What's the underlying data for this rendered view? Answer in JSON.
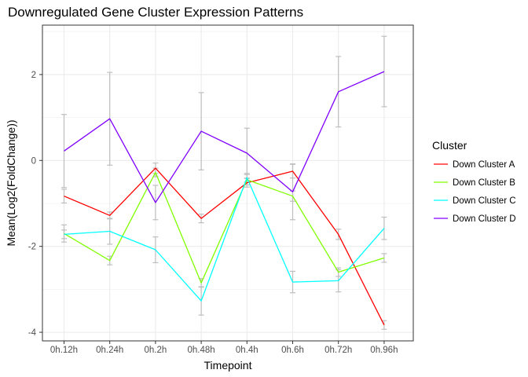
{
  "chart_data": {
    "type": "line",
    "title": "Downregulated Gene Cluster Expression Patterns",
    "xlabel": "Timepoint",
    "ylabel": "Mean(Log2(FoldChange))",
    "categories": [
      "0h.12h",
      "0h.24h",
      "0h.2h",
      "0h.48h",
      "0h.4h",
      "0h.6h",
      "0h.72h",
      "0h.96h"
    ],
    "ylim": [
      -4.2,
      3.15
    ],
    "yticks": [
      -4,
      -2,
      0,
      2
    ],
    "grid": true,
    "legend": {
      "title": "Cluster",
      "position": "right"
    },
    "error_bar_color": "#bebebe",
    "series": [
      {
        "name": "Down Cluster A",
        "color": "#ff0000",
        "values": [
          -0.83,
          -1.28,
          -0.18,
          -1.35,
          -0.52,
          -0.25,
          -1.72,
          -3.83
        ],
        "errors": [
          0.16,
          0.08,
          0.12,
          0.1,
          0.1,
          0.16,
          0.12,
          0.1
        ]
      },
      {
        "name": "Down Cluster B",
        "color": "#80ff00",
        "values": [
          -1.7,
          -2.33,
          -0.28,
          -2.85,
          -0.45,
          -0.83,
          -2.6,
          -2.27
        ],
        "errors": [
          0.2,
          0.1,
          0.1,
          0.1,
          0.12,
          0.12,
          0.1,
          0.1
        ]
      },
      {
        "name": "Down Cluster C",
        "color": "#00ffff",
        "values": [
          -1.72,
          -1.65,
          -2.08,
          -3.27,
          -0.4,
          -2.83,
          -2.8,
          -1.58
        ],
        "errors": [
          0.1,
          0.3,
          0.3,
          0.33,
          0.1,
          0.25,
          0.26,
          0.26
        ]
      },
      {
        "name": "Down Cluster D",
        "color": "#7f00ff",
        "values": [
          0.22,
          0.97,
          -0.98,
          0.68,
          0.17,
          -0.73,
          1.6,
          2.07
        ],
        "errors": [
          0.85,
          1.08,
          0.4,
          0.9,
          0.58,
          0.65,
          0.82,
          0.82
        ]
      }
    ]
  }
}
